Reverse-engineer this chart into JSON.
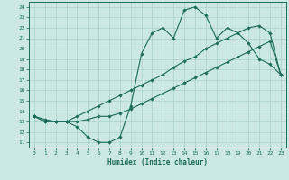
{
  "title": "",
  "xlabel": "Humidex (Indice chaleur)",
  "background_color": "#cce8e5",
  "grid_color": "#aad0cc",
  "line_color": "#1a6b5a",
  "xlim": [
    -0.5,
    23.5
  ],
  "ylim": [
    10.5,
    24.5
  ],
  "xticks": [
    0,
    1,
    2,
    3,
    4,
    5,
    6,
    7,
    8,
    9,
    10,
    11,
    12,
    13,
    14,
    15,
    16,
    17,
    18,
    19,
    20,
    21,
    22,
    23
  ],
  "yticks": [
    11,
    12,
    13,
    14,
    15,
    16,
    17,
    18,
    19,
    20,
    21,
    22,
    23,
    24
  ],
  "curve1_y": [
    13.5,
    13.0,
    13.0,
    13.0,
    12.5,
    11.5,
    11.0,
    11.0,
    11.5,
    14.5,
    19.5,
    21.5,
    22.0,
    21.0,
    23.7,
    24.0,
    23.2,
    21.0,
    22.0,
    21.5,
    20.5,
    19.0,
    18.5,
    17.5
  ],
  "curve2_y": [
    13.5,
    13.2,
    13.0,
    13.0,
    13.5,
    14.0,
    14.5,
    15.0,
    15.5,
    16.0,
    16.5,
    17.0,
    17.5,
    18.2,
    18.8,
    19.2,
    20.0,
    20.5,
    21.0,
    21.5,
    22.0,
    22.2,
    21.5,
    17.5
  ],
  "curve3_y": [
    13.5,
    13.0,
    13.0,
    13.0,
    13.0,
    13.2,
    13.5,
    13.5,
    13.8,
    14.2,
    14.7,
    15.2,
    15.7,
    16.2,
    16.7,
    17.2,
    17.7,
    18.2,
    18.7,
    19.2,
    19.7,
    20.2,
    20.7,
    17.5
  ]
}
